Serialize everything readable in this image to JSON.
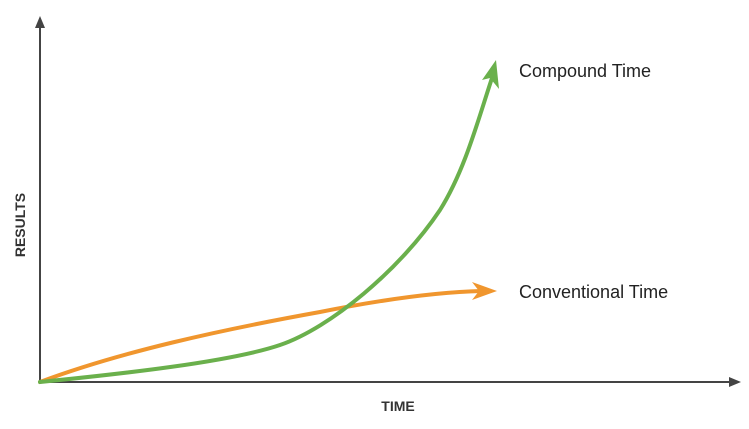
{
  "chart_data": {
    "type": "line",
    "title": "",
    "xlabel": "TIME",
    "ylabel": "RESULTS",
    "grid": false,
    "series": [
      {
        "name": "Compound Time",
        "color": "#6ab04c",
        "trend": "exponential"
      },
      {
        "name": "Conventional Time",
        "color": "#f0962e",
        "trend": "linear-flattening"
      }
    ]
  },
  "colors": {
    "axis": "#444444"
  }
}
